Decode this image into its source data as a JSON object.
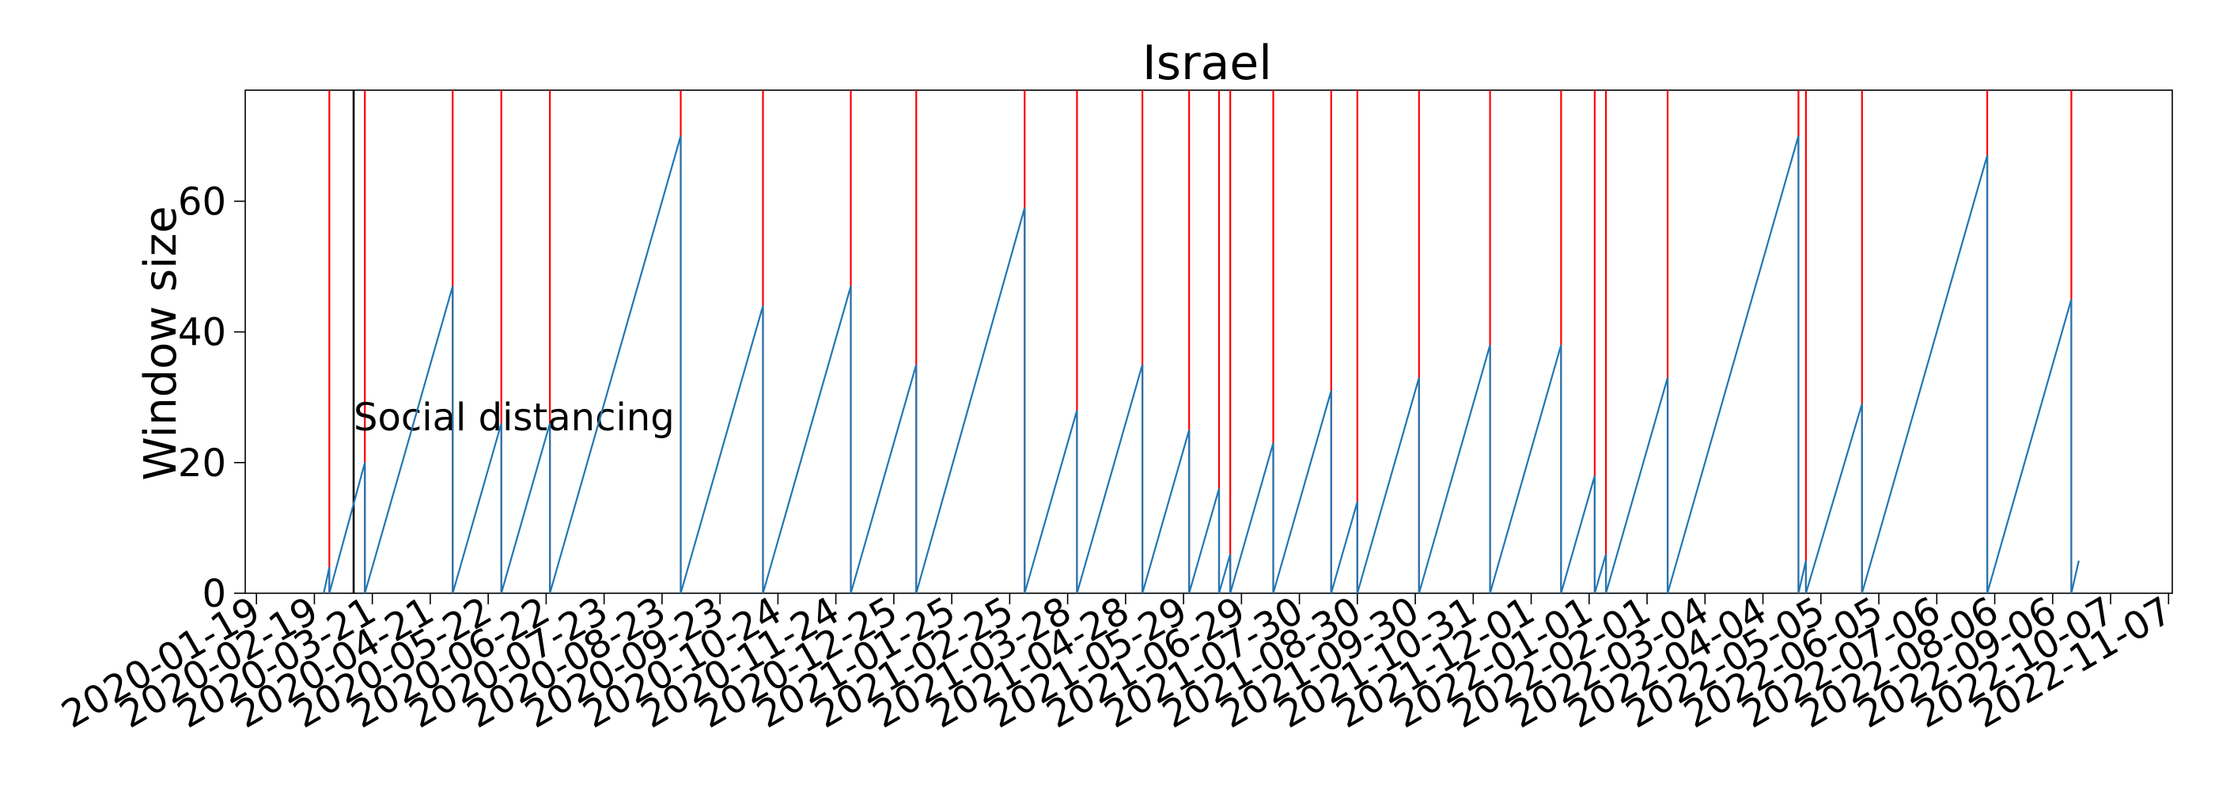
{
  "chart_data": {
    "type": "line",
    "title": "Israel",
    "xlabel": "",
    "ylabel": "Window size",
    "x_ticks": [
      "2020-01-19",
      "2020-02-19",
      "2020-03-21",
      "2020-04-21",
      "2020-05-22",
      "2020-06-22",
      "2020-07-23",
      "2020-08-23",
      "2020-09-23",
      "2020-10-24",
      "2020-11-24",
      "2020-12-25",
      "2021-01-25",
      "2021-02-25",
      "2021-03-28",
      "2021-04-28",
      "2021-05-29",
      "2021-06-29",
      "2021-07-30",
      "2021-08-30",
      "2021-09-30",
      "2021-10-31",
      "2021-12-01",
      "2022-01-01",
      "2022-02-01",
      "2022-03-04",
      "2022-04-04",
      "2022-05-05",
      "2022-06-05",
      "2022-07-06",
      "2022-08-06",
      "2022-09-06",
      "2022-10-07",
      "2022-11-07"
    ],
    "y_ticks": [
      0,
      20,
      40,
      60
    ],
    "xlim": [
      "2020-01-13",
      "2022-11-09"
    ],
    "ylim": [
      0,
      77
    ],
    "grid": false,
    "series": [
      {
        "color": "#1f77b4",
        "points": [
          [
            "2020-02-24",
            0
          ],
          [
            "2020-02-27",
            4
          ],
          [
            "2020-02-27",
            0
          ],
          [
            "2020-03-17",
            20
          ],
          [
            "2020-03-17",
            0
          ],
          [
            "2020-05-03",
            47
          ],
          [
            "2020-05-03",
            0
          ],
          [
            "2020-05-29",
            26
          ],
          [
            "2020-05-29",
            0
          ],
          [
            "2020-06-24",
            26
          ],
          [
            "2020-06-24",
            0
          ],
          [
            "2020-09-02",
            70
          ],
          [
            "2020-09-02",
            0
          ],
          [
            "2020-10-16",
            44
          ],
          [
            "2020-10-16",
            0
          ],
          [
            "2020-12-02",
            47
          ],
          [
            "2020-12-02",
            0
          ],
          [
            "2021-01-06",
            35
          ],
          [
            "2021-01-06",
            0
          ],
          [
            "2021-03-05",
            59
          ],
          [
            "2021-03-05",
            0
          ],
          [
            "2021-04-02",
            28
          ],
          [
            "2021-04-02",
            0
          ],
          [
            "2021-05-07",
            35
          ],
          [
            "2021-05-07",
            0
          ],
          [
            "2021-06-01",
            25
          ],
          [
            "2021-06-01",
            0
          ],
          [
            "2021-06-17",
            16
          ],
          [
            "2021-06-17",
            0
          ],
          [
            "2021-06-23",
            6
          ],
          [
            "2021-06-23",
            0
          ],
          [
            "2021-07-16",
            23
          ],
          [
            "2021-07-16",
            0
          ],
          [
            "2021-08-16",
            31
          ],
          [
            "2021-08-16",
            0
          ],
          [
            "2021-08-30",
            14
          ],
          [
            "2021-08-30",
            0
          ],
          [
            "2021-10-02",
            33
          ],
          [
            "2021-10-02",
            0
          ],
          [
            "2021-11-09",
            38
          ],
          [
            "2021-11-09",
            0
          ],
          [
            "2021-12-17",
            38
          ],
          [
            "2021-12-17",
            0
          ],
          [
            "2022-01-04",
            18
          ],
          [
            "2022-01-04",
            0
          ],
          [
            "2022-01-10",
            6
          ],
          [
            "2022-01-10",
            0
          ],
          [
            "2022-02-12",
            33
          ],
          [
            "2022-02-12",
            0
          ],
          [
            "2022-04-23",
            70
          ],
          [
            "2022-04-23",
            0
          ],
          [
            "2022-04-27",
            5
          ],
          [
            "2022-04-27",
            0
          ],
          [
            "2022-05-27",
            29
          ],
          [
            "2022-05-27",
            0
          ],
          [
            "2022-08-02",
            67
          ],
          [
            "2022-08-02",
            0
          ],
          [
            "2022-09-16",
            45
          ],
          [
            "2022-09-16",
            0
          ],
          [
            "2022-09-20",
            5
          ]
        ]
      }
    ],
    "red_lines": [
      "2020-02-27",
      "2020-03-17",
      "2020-05-03",
      "2020-05-29",
      "2020-06-24",
      "2020-09-02",
      "2020-10-16",
      "2020-12-02",
      "2021-01-06",
      "2021-03-05",
      "2021-04-02",
      "2021-05-07",
      "2021-06-01",
      "2021-06-17",
      "2021-06-23",
      "2021-07-16",
      "2021-08-16",
      "2021-08-30",
      "2021-10-02",
      "2021-11-09",
      "2021-12-17",
      "2022-01-04",
      "2022-01-10",
      "2022-02-12",
      "2022-04-23",
      "2022-04-27",
      "2022-05-27",
      "2022-08-02",
      "2022-09-16"
    ],
    "red_color": "#ff0000",
    "event_lines": [
      {
        "date": "2020-03-11",
        "label": "Social distancing",
        "label_y": 27,
        "color": "#000000"
      }
    ]
  }
}
